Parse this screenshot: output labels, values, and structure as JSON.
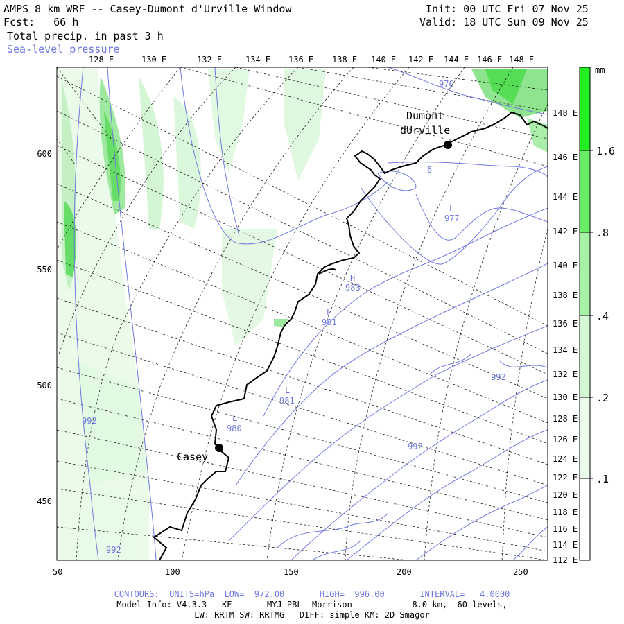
{
  "header": {
    "title": "AMPS 8 km WRF -- Casey-Dumont d'Urville Window",
    "fcst_label": "Fcst:",
    "fcst_value": "66 h",
    "field1": "Total precip. in past 3 h",
    "field2": "Sea-level pressure",
    "init": "Init: 00 UTC Fri 07 Nov 25",
    "valid": "Valid: 18 UTC Sun 09 Nov 25"
  },
  "top_lon_labels": [
    "128 E",
    "130 E",
    "132 E",
    "134 E",
    "136 E",
    "138 E",
    "140 E",
    "142 E",
    "144 E",
    "146 E",
    "148 E"
  ],
  "right_lon_labels": [
    "148 E",
    "146 E",
    "144 E",
    "142 E",
    "140 E",
    "138 E",
    "136 E",
    "134 E",
    "132 E",
    "130 E",
    "128 E",
    "126 E",
    "124 E",
    "122 E",
    "120 E",
    "118 E",
    "116 E",
    "114 E",
    "112 E"
  ],
  "x_ticks": [
    "50",
    "100",
    "150",
    "200",
    "250"
  ],
  "y_ticks": [
    "600",
    "550",
    "500",
    "450"
  ],
  "stations": [
    {
      "name": "Casey"
    },
    {
      "name_line1": "Dumont",
      "name_line2": "dUrville"
    }
  ],
  "pressure_labels": [
    {
      "text": "976"
    },
    {
      "text": "6"
    },
    {
      "text": "L"
    },
    {
      "text": "977"
    },
    {
      "text": "H"
    },
    {
      "text": "983"
    },
    {
      "text": "L"
    },
    {
      "text": "981"
    },
    {
      "text": "L"
    },
    {
      "text": "981"
    },
    {
      "text": "L"
    },
    {
      "text": "980"
    },
    {
      "text": "992"
    },
    {
      "text": "992"
    },
    {
      "text": "992"
    },
    {
      "text": "992"
    }
  ],
  "colorbar": {
    "unit": "mm",
    "labels": [
      "1.6",
      ".8",
      ".4",
      ".2",
      ".1"
    ],
    "colors": [
      "#22ee22",
      "#66ee66",
      "#a6f2a6",
      "#d4f8d4",
      "#ecfcec"
    ]
  },
  "footer": {
    "line1": "CONTOURS:  UNITS=hPa  LOW=  972.00       HIGH=  996.00       INTERVAL=   4.0000",
    "line2": "Model Info: V4.3.3   KF       MYJ PBL  Morrison            8.0 km,  60 levels,",
    "line3": "LW: RRTM SW: RRTMG   DIFF: simple KM: 2D Smagor"
  },
  "colors": {
    "contour": "#6f78e0",
    "precip_light": "#d9f7d9",
    "precip_mid": "#9fe89f",
    "precip_dark": "#55dd55"
  }
}
